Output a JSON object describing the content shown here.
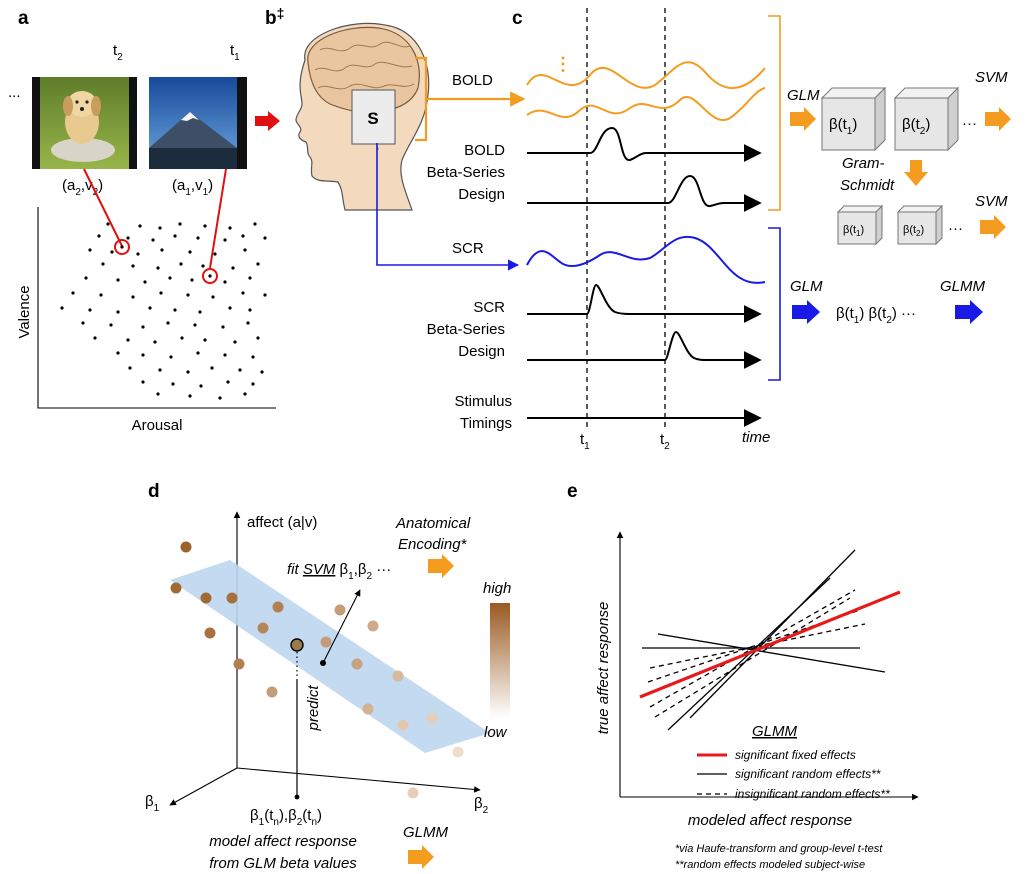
{
  "panels": {
    "a": "a",
    "b": "b",
    "b_mark": "‡",
    "c": "c",
    "d": "d",
    "e": "e"
  },
  "panel_a": {
    "ellipsis": "...",
    "t2": "t",
    "t2_sub": "2",
    "t1": "t",
    "t1_sub": "1",
    "img1_caption": {
      "p1": "(a",
      "s1": "2",
      "p2": ",v",
      "s2": "2",
      "p3": ")"
    },
    "img2_caption": {
      "p1": "(a",
      "s1": "1",
      "p2": ",v",
      "s2": "1",
      "p3": ")"
    },
    "ylabel": "Valence",
    "xlabel": "Arousal"
  },
  "panel_b": {
    "region": "S"
  },
  "panel_c": {
    "bold": "BOLD",
    "bold_design": [
      "BOLD",
      "Beta-Series",
      "Design"
    ],
    "scr": "SCR",
    "scr_design": [
      "SCR",
      "Beta-Series",
      "Design"
    ],
    "stim": [
      "Stimulus",
      "Timings"
    ],
    "t1": "t",
    "t1_sub": "1",
    "t2": "t",
    "t2_sub": "2",
    "time": "time",
    "vdots": "⋮",
    "bold_pipeline": {
      "glm": "GLM",
      "svm": "SVM",
      "svm2": "SVM",
      "beta1": "β(t",
      "beta1_sub": "1",
      "beta2": "β(t",
      "beta2_sub": "2",
      "gs": [
        "Gram-",
        "Schmidt"
      ],
      "small_beta1": "β(t",
      "small_beta1_sub": "1",
      "small_beta2": "β(t",
      "small_beta2_sub": "2",
      "dots": "···"
    },
    "scr_pipeline": {
      "glm": "GLM",
      "glmm": "GLMM",
      "beta_text": {
        "p1": "β(t",
        "s1": "1",
        "p2": ")  β(t",
        "s2": "2",
        "p3": ") ···"
      }
    }
  },
  "panel_d": {
    "zlabel": "affect (a|v)",
    "encoding": [
      "Anatomical",
      "Encoding*"
    ],
    "fit": {
      "p1": "fit ",
      "svm": "SVM",
      "p2": " β",
      "s1": "1",
      "p3": ",β",
      "s2": "2",
      "p4": " ···"
    },
    "legend_high": "high",
    "legend_low": "low",
    "predict": "predict",
    "b1": "β",
    "b1_sub": "1",
    "b2": "β",
    "b2_sub": "2",
    "point_label": {
      "p1": "β",
      "s1": "1",
      "p2": "(t",
      "s2": "n",
      "p3": "),β",
      "s3": "2",
      "p4": "(t",
      "s4": "n",
      "p5": ")"
    },
    "caption": [
      "model affect response",
      "from GLM beta values"
    ],
    "glmm": "GLMM"
  },
  "panel_e": {
    "ylabel": "true affect response",
    "xlabel": "modeled affect response",
    "legend_title": "GLMM",
    "legend": [
      "significant fixed effects",
      "significant random effects**",
      "insignificant random effects**"
    ],
    "footnotes": [
      "*via Haufe-transform and group-level t-test",
      "**random effects modeled subject-wise"
    ]
  },
  "colors": {
    "orange": "#F39C1F",
    "blue": "#1A1AE6",
    "red_arrow": "#E01010",
    "red_line": "#E8191A",
    "plane": "#BDD6EE",
    "brown_high": "#9A5A22"
  }
}
